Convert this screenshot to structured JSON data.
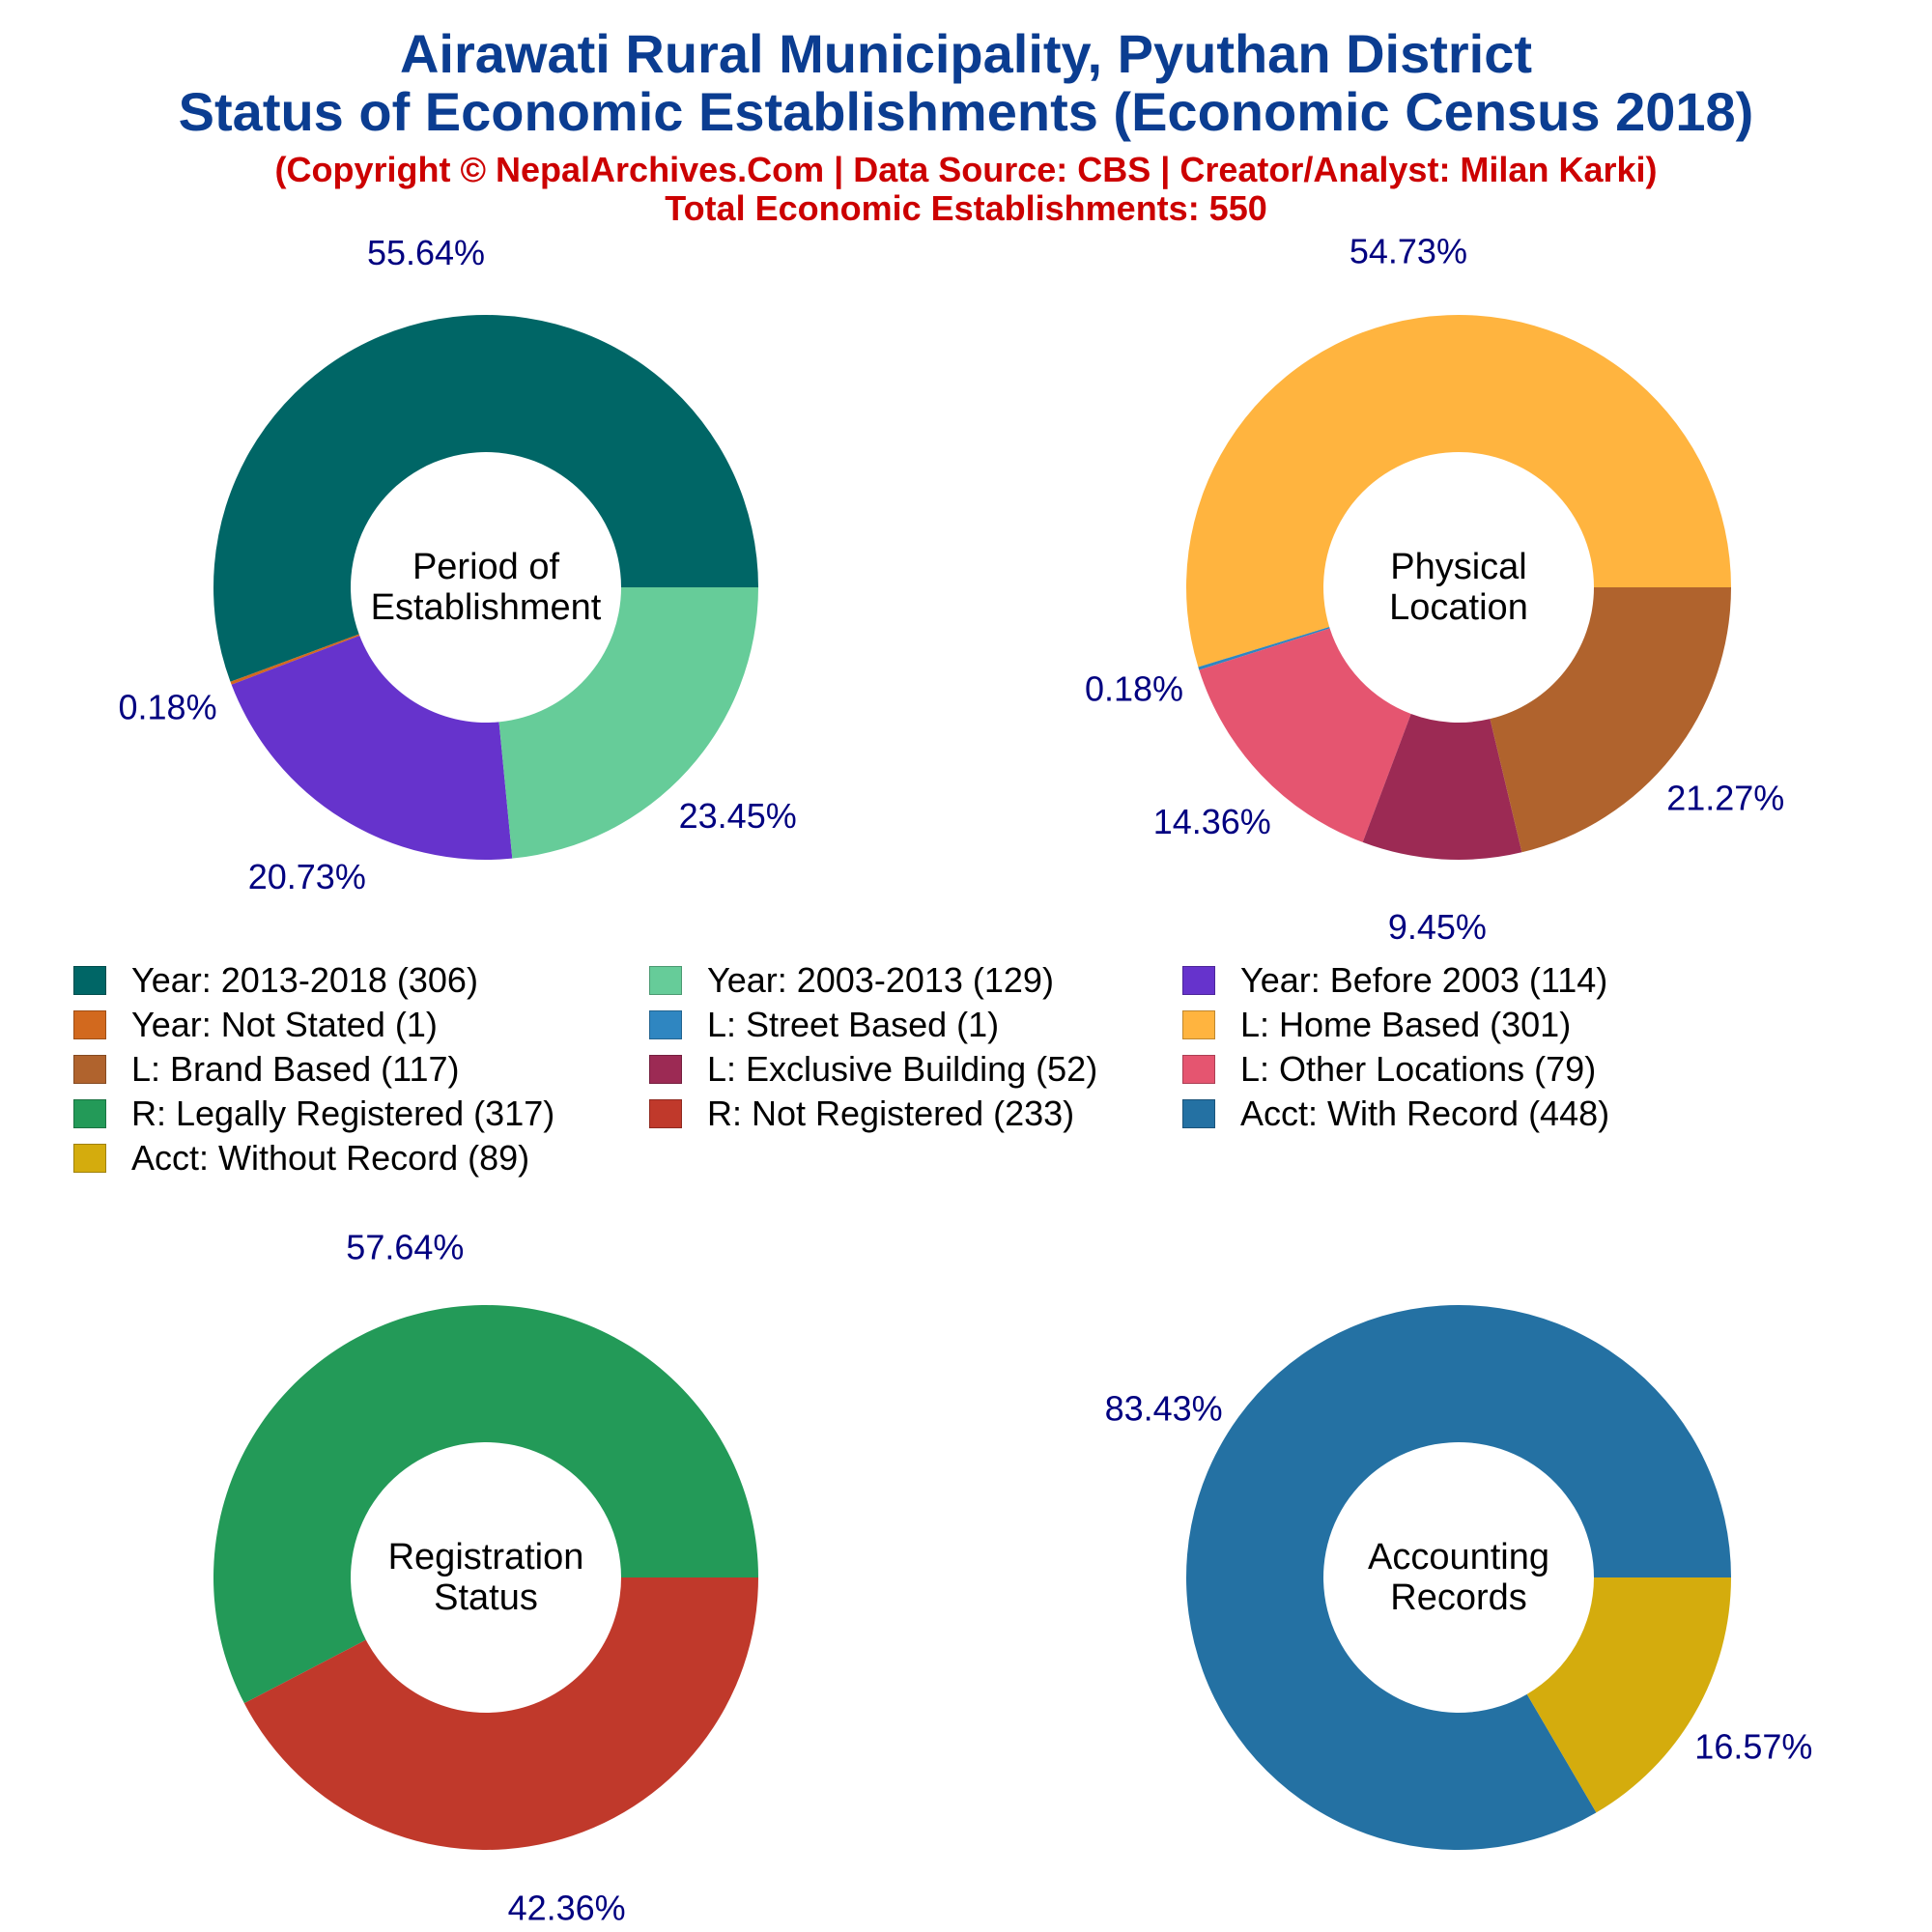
{
  "header": {
    "title_line1": "Airawati Rural Municipality, Pyuthan District",
    "title_line2": "Status of Economic Establishments (Economic Census 2018)",
    "subtitle_line1": "(Copyright © NepalArchives.Com | Data Source: CBS | Creator/Analyst: Milan Karki)",
    "subtitle_line2": "Total Economic Establishments: 550"
  },
  "colors": {
    "title": "#0b3d91",
    "subtitle": "#cc0000",
    "percent_label": "#000080"
  },
  "chart_data": [
    {
      "type": "pie",
      "center_label": [
        "Period of",
        "Establishment"
      ],
      "categories": [
        "Year: 2013-2018",
        "Year: Not Stated",
        "Year: Before 2003",
        "Year: 2003-2013"
      ],
      "values": [
        306,
        1,
        114,
        129
      ],
      "percent_labels": [
        "55.64%",
        "0.18%",
        "20.73%",
        "23.45%"
      ],
      "colors": [
        "#006666",
        "#d2691e",
        "#6633cc",
        "#66cc99"
      ]
    },
    {
      "type": "pie",
      "center_label": [
        "Physical",
        "Location"
      ],
      "categories": [
        "L: Home Based",
        "L: Street Based",
        "L: Other Locations",
        "L: Exclusive Building",
        "L: Brand Based"
      ],
      "values": [
        301,
        1,
        79,
        52,
        117
      ],
      "percent_labels": [
        "54.73%",
        "0.18%",
        "14.36%",
        "9.45%",
        "21.27%"
      ],
      "colors": [
        "#ffb43f",
        "#2f86c1",
        "#e55570",
        "#9c2a54",
        "#b0632d"
      ]
    },
    {
      "type": "pie",
      "center_label": [
        "Registration",
        "Status"
      ],
      "categories": [
        "R: Legally Registered",
        "R: Not Registered"
      ],
      "values": [
        317,
        233
      ],
      "percent_labels": [
        "57.64%",
        "42.36%"
      ],
      "colors": [
        "#239a58",
        "#c0392b"
      ]
    },
    {
      "type": "pie",
      "center_label": [
        "Accounting",
        "Records"
      ],
      "categories": [
        "Acct: With Record",
        "Acct: Without Record"
      ],
      "values": [
        448,
        89
      ],
      "percent_labels": [
        "83.43%",
        "16.57%"
      ],
      "colors": [
        "#2471a3",
        "#d4ac0d"
      ]
    }
  ],
  "legend": {
    "placement": "middle",
    "items": [
      {
        "label": "Year: 2013-2018 (306)",
        "color": "#006666"
      },
      {
        "label": "Year: 2003-2013 (129)",
        "color": "#66cc99"
      },
      {
        "label": "Year: Before 2003 (114)",
        "color": "#6633cc"
      },
      {
        "label": "Year: Not Stated (1)",
        "color": "#d2691e"
      },
      {
        "label": "L: Street Based (1)",
        "color": "#2f86c1"
      },
      {
        "label": "L: Home Based (301)",
        "color": "#ffb43f"
      },
      {
        "label": "L: Brand Based (117)",
        "color": "#b0632d"
      },
      {
        "label": "L: Exclusive Building (52)",
        "color": "#9c2a54"
      },
      {
        "label": "L: Other Locations (79)",
        "color": "#e55570"
      },
      {
        "label": "R: Legally Registered (317)",
        "color": "#239a58"
      },
      {
        "label": "R: Not Registered (233)",
        "color": "#c0392b"
      },
      {
        "label": "Acct: With Record (448)",
        "color": "#2471a3"
      },
      {
        "label": "Acct: Without Record (89)",
        "color": "#d4ac0d"
      }
    ]
  }
}
